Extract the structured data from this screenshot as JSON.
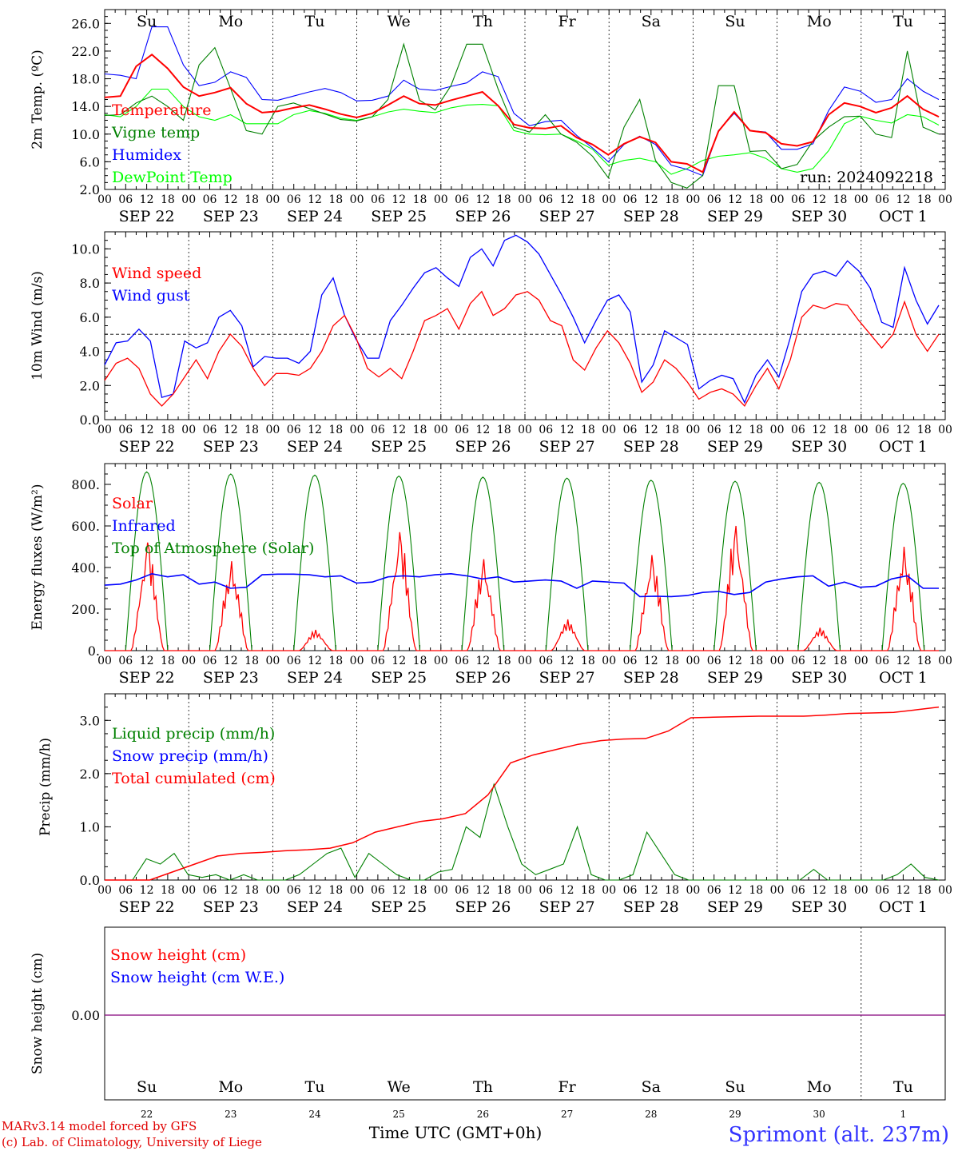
{
  "chart_data": [
    {
      "type": "line",
      "ylabel": "2m Temp. (ºC)",
      "yticks": [
        "2.0",
        "6.0",
        "10.0",
        "14.0",
        "18.0",
        "22.0",
        "26.0"
      ],
      "ylim": [
        2,
        28
      ],
      "day_names": [
        "Su",
        "Mo",
        "Tu",
        "We",
        "Th",
        "Fr",
        "Sa",
        "Su",
        "Mo",
        "Tu"
      ],
      "run_label": "run: 2024092218",
      "series": [
        {
          "name": "Temperature",
          "color": "#ff0000",
          "values": [
            15.3,
            15.5,
            19.8,
            21.5,
            19.5,
            16.8,
            15.5,
            16.0,
            16.7,
            14.4,
            13.1,
            13.3,
            13.8,
            14.2,
            13.6,
            12.9,
            12.4,
            13.0,
            14.2,
            15.5,
            14.4,
            14.2,
            14.9,
            15.5,
            16.1,
            14.1,
            11.4,
            10.9,
            10.8,
            11.2,
            9.5,
            8.5,
            7.0,
            8.6,
            9.6,
            8.8,
            6.0,
            5.7,
            4.5,
            10.4,
            13.2,
            10.5,
            10.2,
            8.6,
            8.3,
            8.9,
            12.8,
            14.5,
            14.0,
            13.1,
            13.8,
            15.5,
            13.6,
            12.5
          ]
        },
        {
          "name": "Vigne temp",
          "color": "#008000",
          "values": [
            12.7,
            12.8,
            14.5,
            15.5,
            14.0,
            12.0,
            20.0,
            22.5,
            16.6,
            10.5,
            10.0,
            14.0,
            14.5,
            13.7,
            12.9,
            12.1,
            11.9,
            12.5,
            15.0,
            23.0,
            14.9,
            13.5,
            17.0,
            23.0,
            23.0,
            16.5,
            11.0,
            10.3,
            12.8,
            10.0,
            8.8,
            6.8,
            3.7,
            11.0,
            15.0,
            6.2,
            3.0,
            2.2,
            4.0,
            17.0,
            17.0,
            7.5,
            7.6,
            5.0,
            5.6,
            9.0,
            11.0,
            12.5,
            12.6,
            10.0,
            9.5,
            22.0,
            11.0,
            10.0
          ]
        },
        {
          "name": "Humidex",
          "color": "#0000ff",
          "values": [
            18.7,
            18.5,
            18.0,
            25.5,
            25.5,
            20.0,
            17.0,
            17.5,
            19.0,
            18.2,
            15.0,
            14.9,
            15.5,
            16.1,
            16.6,
            16.0,
            14.8,
            14.9,
            15.5,
            17.8,
            16.5,
            16.3,
            16.9,
            17.4,
            19.0,
            18.3,
            13.0,
            11.2,
            11.8,
            12.0,
            9.8,
            8.0,
            6.0,
            8.5,
            9.7,
            8.5,
            5.5,
            4.9,
            4.0,
            10.5,
            13.0,
            10.5,
            10.3,
            7.8,
            7.8,
            8.6,
            13.4,
            16.8,
            16.2,
            14.6,
            15.0,
            18.0,
            16.2,
            15.0
          ]
        },
        {
          "name": "DewPoint Temp",
          "color": "#00ff00",
          "values": [
            12.8,
            12.5,
            14.0,
            16.5,
            16.5,
            14.0,
            12.5,
            12.0,
            12.8,
            11.5,
            11.5,
            11.5,
            12.8,
            13.4,
            13.0,
            12.3,
            12.0,
            12.5,
            13.2,
            13.6,
            13.3,
            13.1,
            13.8,
            14.2,
            14.3,
            14.1,
            10.5,
            10.0,
            9.9,
            10.0,
            9.0,
            7.8,
            5.5,
            6.2,
            6.5,
            6.0,
            4.2,
            5.0,
            6.2,
            6.8,
            7.0,
            7.3,
            6.5,
            5.0,
            4.5,
            5.0,
            7.6,
            11.5,
            12.6,
            12.0,
            11.6,
            12.8,
            12.5,
            11.3
          ]
        }
      ]
    },
    {
      "type": "line",
      "ylabel": "10m Wind (m/s)",
      "yticks": [
        "0.0",
        "2.0",
        "4.0",
        "6.0",
        "8.0",
        "10.0"
      ],
      "ylim": [
        0,
        11
      ],
      "reference_line": 5.0,
      "series": [
        {
          "name": "Wind speed",
          "color": "#ff0000",
          "values": [
            2.3,
            3.3,
            3.6,
            3.0,
            1.5,
            0.8,
            1.5,
            2.5,
            3.5,
            2.4,
            4.0,
            5.0,
            4.3,
            3.0,
            2.0,
            2.7,
            2.7,
            2.6,
            3.0,
            4.0,
            5.5,
            6.1,
            4.8,
            3.0,
            2.5,
            3.0,
            2.4,
            4.0,
            5.8,
            6.1,
            6.5,
            5.3,
            6.8,
            7.5,
            6.1,
            6.5,
            7.3,
            7.5,
            7.0,
            5.8,
            5.5,
            3.5,
            2.9,
            4.2,
            5.2,
            4.5,
            3.3,
            1.6,
            2.2,
            3.5,
            3.0,
            2.2,
            1.2,
            1.6,
            1.8,
            1.5,
            0.8,
            2.0,
            3.0,
            1.8,
            3.5,
            6.0,
            6.7,
            6.5,
            6.8,
            6.7,
            5.8,
            5.0,
            4.2,
            5.0,
            6.9,
            5.0,
            4.0,
            5.0
          ]
        },
        {
          "name": "Wind gust",
          "color": "#0000ff",
          "values": [
            3.2,
            4.5,
            4.6,
            5.3,
            4.6,
            1.3,
            1.5,
            4.6,
            4.2,
            4.5,
            6.0,
            6.4,
            5.5,
            3.1,
            3.7,
            3.6,
            3.6,
            3.3,
            4.0,
            7.3,
            8.3,
            6.1,
            4.7,
            3.6,
            3.6,
            5.8,
            6.7,
            7.7,
            8.6,
            8.9,
            8.3,
            7.8,
            9.5,
            10.0,
            9.0,
            10.5,
            10.8,
            10.4,
            9.7,
            8.5,
            7.3,
            6.0,
            4.5,
            5.8,
            7.0,
            7.3,
            6.3,
            2.2,
            3.2,
            5.2,
            4.8,
            4.4,
            1.8,
            2.3,
            2.6,
            2.4,
            1.0,
            2.6,
            3.5,
            2.5,
            4.8,
            7.5,
            8.5,
            8.7,
            8.4,
            9.3,
            8.7,
            7.7,
            5.7,
            5.4,
            8.9,
            7.0,
            5.6,
            6.7
          ]
        }
      ]
    },
    {
      "type": "line",
      "ylabel": "Energy fluxes (W/m²)",
      "yticks": [
        "0.",
        "200.",
        "400.",
        "600.",
        "800."
      ],
      "ylim": [
        0,
        900
      ],
      "series": [
        {
          "name": "Solar",
          "color": "#ff0000",
          "peaks": [
            520,
            430,
            100,
            570,
            440,
            150,
            460,
            600,
            110,
            500
          ]
        },
        {
          "name": "Infrared",
          "color": "#0000ff",
          "values": [
            315,
            320,
            340,
            370,
            355,
            365,
            320,
            330,
            300,
            305,
            365,
            368,
            368,
            365,
            355,
            360,
            325,
            330,
            355,
            360,
            355,
            365,
            370,
            360,
            345,
            355,
            330,
            335,
            340,
            335,
            300,
            335,
            330,
            325,
            260,
            262,
            260,
            265,
            280,
            285,
            270,
            280,
            330,
            345,
            355,
            360,
            310,
            330,
            305,
            310,
            345,
            360,
            300,
            300
          ]
        },
        {
          "name": "Top of Atmosphere (Solar)",
          "color": "#008000",
          "peaks": [
            860,
            850,
            845,
            840,
            835,
            830,
            820,
            815,
            810,
            805
          ]
        }
      ]
    },
    {
      "type": "line",
      "ylabel": "Precip (mm/h)",
      "yticks": [
        "0.0",
        "1.0",
        "2.0",
        "3.0"
      ],
      "ylim": [
        0,
        3.5
      ],
      "series": [
        {
          "name": "Liquid precip (mm/h)",
          "color": "#008000",
          "values": [
            0,
            0,
            0,
            0.4,
            0.3,
            0.5,
            0.1,
            0.05,
            0.1,
            0,
            0.1,
            0,
            0,
            0,
            0.1,
            0.3,
            0.5,
            0.6,
            0.05,
            0.5,
            0.3,
            0.1,
            0,
            0,
            0.15,
            0.2,
            1.0,
            0.8,
            1.8,
            1.0,
            0.3,
            0.1,
            0.2,
            0.3,
            1.0,
            0.1,
            0,
            0,
            0.1,
            0.9,
            0.5,
            0.1,
            0,
            0,
            0,
            0,
            0,
            0,
            0,
            0,
            0,
            0.2,
            0,
            0,
            0,
            0,
            0,
            0.1,
            0.3,
            0.05,
            0
          ]
        },
        {
          "name": "Snow precip (mm/h)",
          "color": "#0000ff",
          "values": []
        },
        {
          "name": "Total cumulated (cm)",
          "color": "#ff0000",
          "values": [
            0,
            0,
            0,
            0.15,
            0.3,
            0.45,
            0.5,
            0.52,
            0.55,
            0.57,
            0.6,
            0.7,
            0.9,
            1.0,
            1.1,
            1.15,
            1.25,
            1.6,
            2.2,
            2.35,
            2.45,
            2.55,
            2.62,
            2.65,
            2.66,
            2.8,
            3.05,
            3.06,
            3.07,
            3.08,
            3.08,
            3.08,
            3.1,
            3.13,
            3.14,
            3.15,
            3.2,
            3.25
          ]
        }
      ]
    },
    {
      "type": "line",
      "ylabel": "Snow height (cm)",
      "yticks": [
        "0.00"
      ],
      "series": [
        {
          "name": "Snow height (cm)",
          "color": "#ff0000",
          "values": [
            0,
            0
          ]
        },
        {
          "name": "Snow height (cm W.E.)",
          "color": "#0000ff",
          "values": [
            0,
            0
          ]
        }
      ]
    }
  ],
  "x_axis": {
    "hour_labels": [
      "00",
      "06",
      "12",
      "18"
    ],
    "date_labels": [
      "SEP 22",
      "SEP 23",
      "SEP 24",
      "SEP 25",
      "SEP 26",
      "SEP 27",
      "SEP 28",
      "SEP 29",
      "SEP 30",
      "OCT  1"
    ],
    "day_numbers": [
      "22",
      "23",
      "24",
      "25",
      "26",
      "27",
      "28",
      "29",
      "30",
      "1"
    ],
    "xlabel": "Time UTC (GMT+0h)"
  },
  "footer": {
    "model_line": "MARv3.14 model forced by GFS",
    "credit_line": "(c) Lab. of Climatology, University of Liege",
    "station": "Sprimont (alt. 237m)"
  },
  "colors": {
    "weekend_day": "#ff0000",
    "weekday": "#000000",
    "station": "#3333ff"
  }
}
